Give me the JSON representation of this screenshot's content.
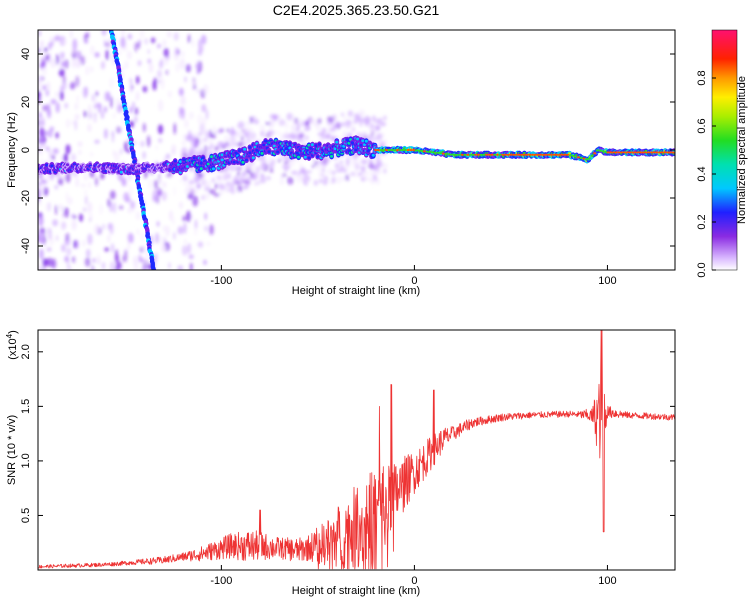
{
  "title": "C2E4.2025.365.23.50.G21",
  "chart_data": [
    {
      "type": "heatmap",
      "name": "spectrogram",
      "xlabel": "Height of straight line (km)",
      "ylabel": "Frequency (Hz)",
      "xlim": [
        -195,
        135
      ],
      "ylim": [
        -50,
        50
      ],
      "xticks": [
        -100,
        0,
        100
      ],
      "yticks": [
        -40,
        -20,
        0,
        20,
        40
      ],
      "ridge_x": [
        -195,
        -170,
        -150,
        -130,
        -110,
        -90,
        -75,
        -60,
        -45,
        -30,
        -20,
        -10,
        0,
        20,
        50,
        80,
        90,
        95,
        100,
        135
      ],
      "ridge_y": [
        -8,
        -7,
        -8,
        -7,
        -6,
        -3,
        2,
        -1,
        0,
        2,
        0,
        0,
        0,
        -2,
        -2,
        -2,
        -4,
        0,
        -1,
        -1
      ],
      "streak": {
        "x_start": -157,
        "x_end": -135,
        "y_start": 50,
        "y_end": -50
      },
      "colorbar": {
        "label": "Normalized spectral amplitude",
        "ticks": [
          "0.0",
          "0.2",
          "0.4",
          "0.6",
          "0.8"
        ],
        "range": [
          0,
          1
        ]
      }
    },
    {
      "type": "line",
      "name": "snr",
      "xlabel": "Height of straight line (km)",
      "ylabel": "SNR (10 * v/v)",
      "multiplier": "(x10",
      "multiplier_exp": "4",
      "multiplier_close": ")",
      "xlim": [
        -195,
        135
      ],
      "ylim": [
        0,
        2.2
      ],
      "xticks": [
        -100,
        0,
        100
      ],
      "yticks": [
        0.5,
        1.0,
        1.5,
        2.0
      ],
      "ytick_labels": [
        "0.5",
        "1.0",
        "1.5",
        "2.0"
      ],
      "color": "#ee3333",
      "trend_x": [
        -195,
        -160,
        -130,
        -110,
        -95,
        -80,
        -60,
        -45,
        -35,
        -25,
        -15,
        -5,
        5,
        15,
        30,
        45,
        60,
        80,
        90,
        95,
        100,
        110,
        135
      ],
      "trend_y": [
        0.03,
        0.05,
        0.09,
        0.15,
        0.22,
        0.22,
        0.18,
        0.25,
        0.35,
        0.45,
        0.58,
        0.8,
        1.0,
        1.2,
        1.35,
        1.4,
        1.42,
        1.43,
        1.42,
        1.4,
        1.45,
        1.42,
        1.4
      ],
      "noise_x": [
        -195,
        -150,
        -120,
        -100,
        -85,
        -70,
        -55,
        -45,
        -35,
        -20,
        -10,
        0,
        10,
        20,
        35,
        60,
        85,
        92,
        97,
        100,
        110,
        135
      ],
      "noise_y": [
        0.015,
        0.02,
        0.04,
        0.1,
        0.15,
        0.1,
        0.12,
        0.22,
        0.35,
        0.45,
        0.3,
        0.2,
        0.15,
        0.07,
        0.04,
        0.03,
        0.03,
        0.07,
        0.5,
        0.06,
        0.03,
        0.03
      ],
      "spikes": [
        {
          "x": -80,
          "y": 0.55
        },
        {
          "x": -18,
          "y": 1.5
        },
        {
          "x": -12,
          "y": 1.7
        },
        {
          "x": 10,
          "y": 1.65
        },
        {
          "x": 97,
          "y": 2.2
        },
        {
          "x": 98,
          "y": 0.35
        }
      ]
    }
  ]
}
